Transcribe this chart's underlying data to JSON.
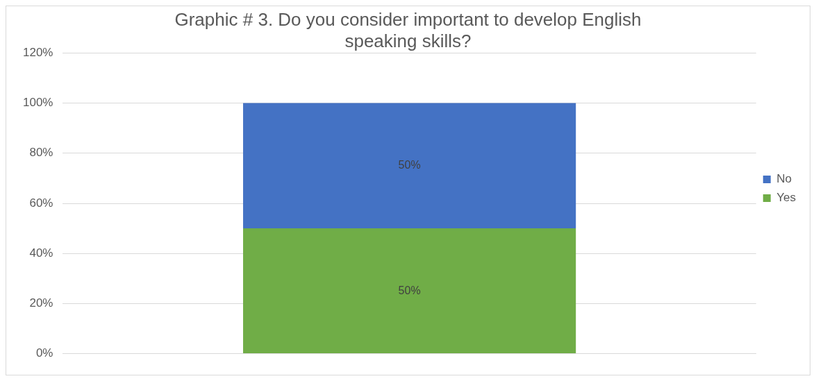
{
  "chart_data": {
    "type": "bar",
    "title": "Graphic # 3. Do you consider important to develop English speaking skills?",
    "categories": [
      null
    ],
    "stacked": true,
    "series": [
      {
        "name": "Yes",
        "color": "#70ad47",
        "values": [
          50
        ],
        "value_labels": [
          "50%"
        ]
      },
      {
        "name": "No",
        "color": "#4472c4",
        "values": [
          50
        ],
        "value_labels": [
          "50%"
        ]
      }
    ],
    "ylim": [
      0,
      120
    ],
    "yticks": [
      {
        "value": 0,
        "label": "0%"
      },
      {
        "value": 20,
        "label": "20%"
      },
      {
        "value": 40,
        "label": "40%"
      },
      {
        "value": 60,
        "label": "60%"
      },
      {
        "value": 80,
        "label": "80%"
      },
      {
        "value": 100,
        "label": "100%"
      },
      {
        "value": 120,
        "label": "120%"
      }
    ],
    "grid": "y",
    "legend": "right"
  }
}
